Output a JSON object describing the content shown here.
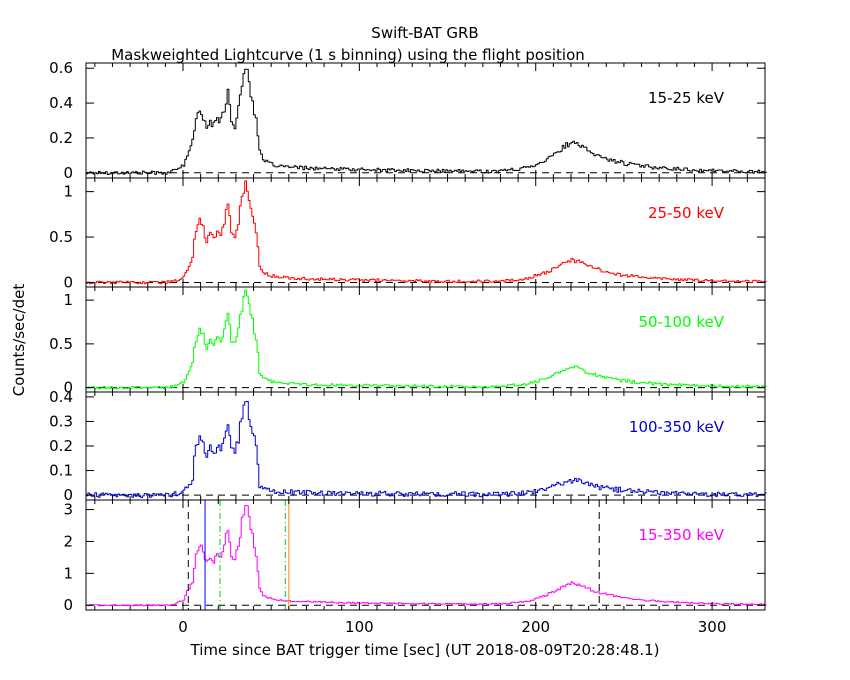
{
  "title": "Swift-BAT GRB",
  "subtitle": "Maskweighted Lightcurve (1 s binning) using the flight position",
  "chart_data": {
    "type": "line",
    "title": "Swift-BAT GRB",
    "subtitle": "Maskweighted Lightcurve (1 s binning) using the flight position",
    "xlabel": "Time since BAT trigger time [sec] (UT 2018-08-09T20:28:48.1)",
    "ylabel": "Counts/sec/det",
    "xlim": [
      -55,
      330
    ],
    "xticks": [
      0,
      100,
      200,
      300
    ],
    "x_tick_labels": [
      "0",
      "100",
      "200",
      "300"
    ],
    "legend": "none",
    "grid": false,
    "dashed_baseline_y": 0,
    "profile_x": [
      -55,
      -10,
      -5,
      0,
      3,
      5,
      7,
      9,
      11,
      13,
      15,
      17,
      19,
      21,
      23,
      25,
      27,
      29,
      31,
      33,
      35,
      36,
      37,
      39,
      41,
      43,
      45,
      48,
      52,
      56,
      62,
      70,
      85,
      100,
      130,
      160,
      180,
      195,
      205,
      212,
      218,
      221,
      225,
      232,
      240,
      250,
      262,
      275,
      300,
      330
    ],
    "profile_shape": [
      0.0,
      0.0,
      0.02,
      0.07,
      0.22,
      0.3,
      0.5,
      0.62,
      0.55,
      0.42,
      0.5,
      0.45,
      0.52,
      0.5,
      0.62,
      0.78,
      0.5,
      0.46,
      0.6,
      0.85,
      1.0,
      0.97,
      0.85,
      0.7,
      0.5,
      0.2,
      0.12,
      0.09,
      0.07,
      0.06,
      0.05,
      0.045,
      0.035,
      0.03,
      0.02,
      0.015,
      0.015,
      0.05,
      0.12,
      0.2,
      0.27,
      0.28,
      0.25,
      0.18,
      0.13,
      0.09,
      0.06,
      0.04,
      0.02,
      0.01
    ],
    "panels": [
      {
        "label": "15-25 keV",
        "color": "#000000",
        "ylim": [
          -0.03,
          0.63
        ],
        "yticks": [
          0,
          0.2,
          0.4,
          0.6
        ],
        "y_tick_labels": [
          "0",
          "0.2",
          "0.4",
          "0.6"
        ],
        "peak": 0.6,
        "late_peak": 0.17,
        "noise": 0.01
      },
      {
        "label": "25-50 keV",
        "color": "#ff0000",
        "ylim": [
          -0.05,
          1.15
        ],
        "yticks": [
          0,
          0.5,
          1
        ],
        "y_tick_labels": [
          "0",
          "0.5",
          "1"
        ],
        "peak": 1.1,
        "late_peak": 0.25,
        "noise": 0.015
      },
      {
        "label": "50-100 keV",
        "color": "#00ff00",
        "ylim": [
          -0.05,
          1.15
        ],
        "yticks": [
          0,
          0.5,
          1
        ],
        "y_tick_labels": [
          "0",
          "0.5",
          "1"
        ],
        "peak": 1.1,
        "late_peak": 0.24,
        "noise": 0.015
      },
      {
        "label": "100-350 keV",
        "color": "#0000cc",
        "ylim": [
          -0.02,
          0.42
        ],
        "yticks": [
          0,
          0.1,
          0.2,
          0.3,
          0.4
        ],
        "y_tick_labels": [
          "0",
          "0.1",
          "0.2",
          "0.3",
          "0.4"
        ],
        "peak": 0.38,
        "late_peak": 0.06,
        "noise": 0.01
      },
      {
        "label": "15-350 keV",
        "color": "#ff00ff",
        "ylim": [
          -0.15,
          3.3
        ],
        "yticks": [
          0,
          1,
          2,
          3
        ],
        "y_tick_labels": [
          "0",
          "1",
          "2",
          "3"
        ],
        "peak": 3.1,
        "late_peak": 0.7,
        "noise": 0.02
      }
    ],
    "vertical_markers": [
      {
        "x": 3,
        "color": "#000000",
        "style": "dashed",
        "panel": "15-350 keV"
      },
      {
        "x": 12.5,
        "color": "#0000ff",
        "style": "solid",
        "panel": "15-350 keV"
      },
      {
        "x": 21,
        "color": "#00cc00",
        "style": "dashdot",
        "panel": "15-350 keV"
      },
      {
        "x": 58,
        "color": "#00cc00",
        "style": "dashdot",
        "panel": "15-350 keV"
      },
      {
        "x": 60,
        "color": "#ff8800",
        "style": "solid",
        "panel": "15-350 keV"
      },
      {
        "x": 236,
        "color": "#000000",
        "style": "dashed",
        "panel": "15-350 keV"
      }
    ]
  }
}
